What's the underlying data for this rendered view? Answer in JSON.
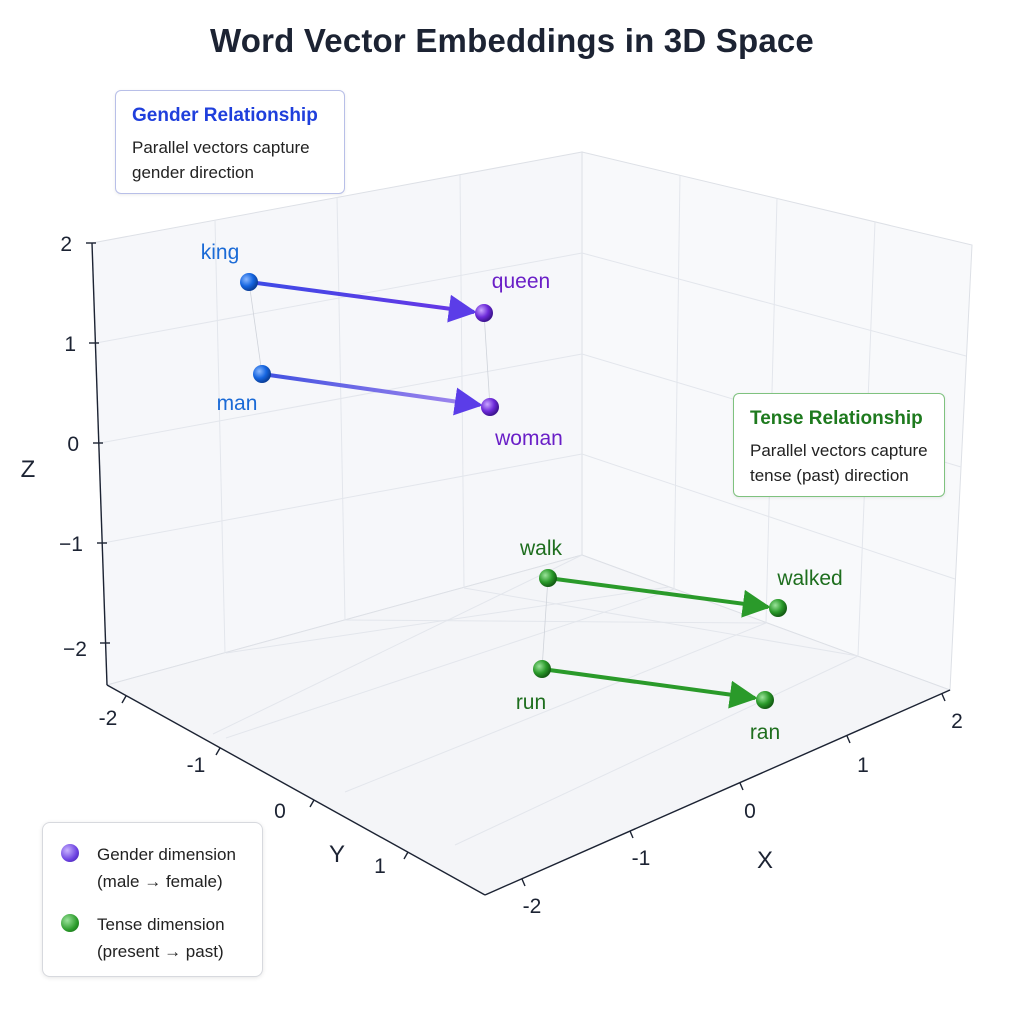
{
  "chart_data": {
    "type": "scatter",
    "title": "Word Vector Embeddings in 3D Space",
    "xlabel": "X",
    "ylabel": "Y",
    "zlabel": "Z",
    "xlim": [
      -2,
      2
    ],
    "ylim": [
      -2,
      2
    ],
    "zlim": [
      -2,
      2
    ],
    "x_ticks": [
      "-2",
      "-1",
      "0",
      "1",
      "2"
    ],
    "y_ticks": [
      "-2",
      "-1",
      "0",
      "1"
    ],
    "z_ticks": [
      "2",
      "1",
      "0",
      "−1",
      "−2"
    ],
    "grid": true,
    "points": [
      {
        "label": "king",
        "x": -1.6,
        "y": -1.8,
        "z": 1.6,
        "group": "gender"
      },
      {
        "label": "queen",
        "x": 0.4,
        "y": -0.4,
        "z": 1.4,
        "group": "gender"
      },
      {
        "label": "man",
        "x": -1.4,
        "y": -1.6,
        "z": 0.6,
        "group": "gender"
      },
      {
        "label": "woman",
        "x": 0.6,
        "y": -0.2,
        "z": 0.5,
        "group": "gender"
      },
      {
        "label": "walk",
        "x": 0.6,
        "y": -1.6,
        "z": -1.6,
        "group": "tense"
      },
      {
        "label": "walked",
        "x": 1.9,
        "y": -0.2,
        "z": -1.4,
        "group": "tense"
      },
      {
        "label": "run",
        "x": 0.4,
        "y": -1.4,
        "z": -2.2,
        "group": "tense"
      },
      {
        "label": "ran",
        "x": 1.6,
        "y": 0.2,
        "z": -2.2,
        "group": "tense"
      }
    ],
    "arrows": [
      {
        "from": "king",
        "to": "queen",
        "group": "gender"
      },
      {
        "from": "man",
        "to": "woman",
        "group": "gender"
      },
      {
        "from": "walk",
        "to": "walked",
        "group": "tense"
      },
      {
        "from": "run",
        "to": "ran",
        "group": "tense"
      }
    ],
    "colors": {
      "gender_start": "#1565e0",
      "gender_end": "#6d2bd9",
      "gender_arrow": "#5b3de8",
      "tense": "#2a9a2a",
      "gender_label": "#1a6ad6",
      "gender_end_label": "#6a1fc7",
      "tense_label": "#1e6e1e"
    },
    "annotations": [
      {
        "title": "Gender Relationship",
        "text": "Parallel vectors capture gender direction"
      },
      {
        "title": "Tense Relationship",
        "text": "Parallel vectors capture tense (past) direction"
      }
    ],
    "legend": [
      {
        "label_line1": "Gender dimension",
        "label_line2": "(male → female)",
        "color": "#6a3fe0"
      },
      {
        "label_line1": "Tense dimension",
        "label_line2": "(present → past)",
        "color": "#2a9a2a"
      }
    ],
    "legend_position": "bottom-left"
  }
}
